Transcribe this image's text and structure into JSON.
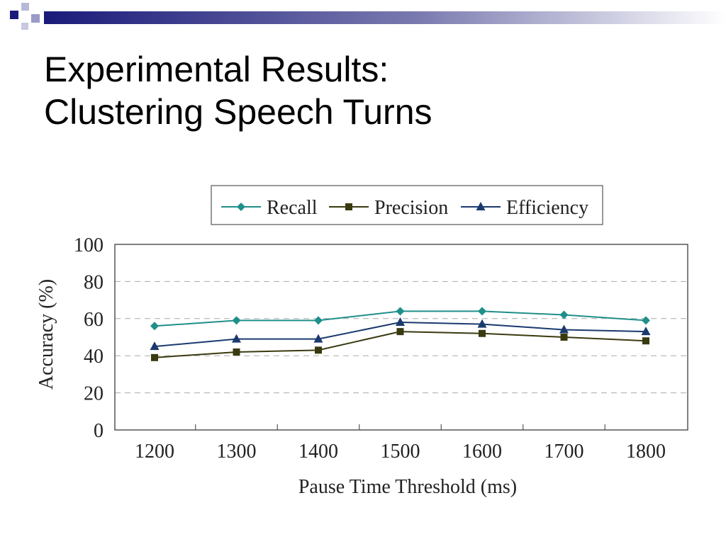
{
  "slide": {
    "title_line1": "Experimental Results:",
    "title_line2": "Clustering Speech Turns"
  },
  "chart_data": {
    "type": "line",
    "x": [
      1200,
      1300,
      1400,
      1500,
      1600,
      1700,
      1800
    ],
    "xlabel": "Pause Time Threshold (ms)",
    "ylabel": "Accuracy (%)",
    "ylim": [
      0,
      100
    ],
    "yticks": [
      0,
      20,
      40,
      60,
      80,
      100
    ],
    "grid": "horizontal dashed",
    "legend_position": "top",
    "series": [
      {
        "name": "Recall",
        "color": "#1f8f8a",
        "marker": "diamond",
        "values": [
          56,
          59,
          59,
          64,
          64,
          62,
          59
        ]
      },
      {
        "name": "Precision",
        "color": "#3a3a10",
        "marker": "square",
        "values": [
          39,
          42,
          43,
          53,
          52,
          50,
          48
        ]
      },
      {
        "name": "Efficiency",
        "color": "#1a3a6e",
        "marker": "triangle",
        "values": [
          45,
          49,
          49,
          58,
          57,
          54,
          53
        ]
      }
    ]
  }
}
